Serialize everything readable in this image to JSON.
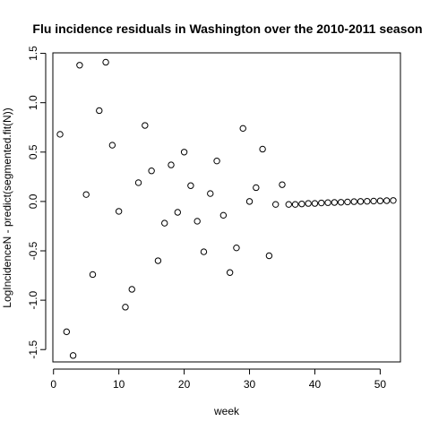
{
  "chart_data": {
    "type": "scatter",
    "title": "Flu incidence residuals in Washington over the 2010-2011 season",
    "xlabel": "week",
    "ylabel": "LogIncidenceN - predict(segmented.fit(N))",
    "xlim": [
      -0.1,
      53.1
    ],
    "ylim": [
      -1.625,
      1.505
    ],
    "xticks": [
      0,
      10,
      20,
      30,
      40,
      50
    ],
    "yticks": [
      -1.5,
      -1.0,
      -0.5,
      0.0,
      0.5,
      1.0,
      1.5
    ],
    "ytick_labels": [
      "-1.5",
      "-1.0",
      "-0.5",
      "0.0",
      "0.5",
      "1.0",
      "1.5"
    ],
    "grid": false,
    "legend": "none",
    "marker": "open-circle",
    "x": [
      1,
      2,
      3,
      4,
      5,
      6,
      7,
      8,
      9,
      10,
      11,
      12,
      13,
      14,
      15,
      16,
      17,
      18,
      19,
      20,
      21,
      22,
      23,
      24,
      25,
      26,
      27,
      28,
      29,
      30,
      31,
      32,
      33,
      34,
      35,
      36,
      37,
      38,
      39,
      40,
      41,
      42,
      43,
      44,
      45,
      46,
      47,
      48,
      49,
      50,
      51,
      52
    ],
    "y": [
      0.68,
      -1.32,
      -1.56,
      1.38,
      0.07,
      -0.74,
      0.92,
      1.41,
      0.57,
      -0.1,
      -1.07,
      -0.89,
      0.19,
      0.77,
      0.31,
      -0.6,
      -0.22,
      0.37,
      -0.11,
      0.5,
      0.16,
      -0.2,
      -0.51,
      0.08,
      0.41,
      -0.14,
      -0.72,
      -0.47,
      0.74,
      0.0,
      0.14,
      0.53,
      -0.55,
      -0.03,
      0.17,
      -0.03,
      -0.03,
      -0.025,
      -0.02,
      -0.02,
      -0.015,
      -0.012,
      -0.01,
      -0.008,
      -0.005,
      -0.002,
      0.0,
      0.002,
      0.004,
      0.006,
      0.008,
      0.01
    ]
  }
}
